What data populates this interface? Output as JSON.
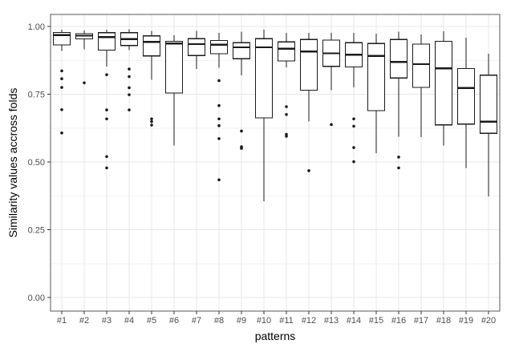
{
  "axes": {
    "x_title": "patterns",
    "y_title": "Similarity values accross folds"
  },
  "colors": {
    "background": "#ffffff",
    "panel_background": "#ffffff",
    "panel_border": "#595959",
    "grid_major": "#e7e7e7",
    "grid_minor": "#f2f2f2",
    "tick_mark": "#333333",
    "tick_label": "#4d4d4d",
    "axis_title": "#000000",
    "box_stroke": "#1a1a1a",
    "box_fill": "#ffffff",
    "median_stroke": "#1a1a1a",
    "outlier_fill": "#1a1a1a"
  },
  "chart_data": {
    "type": "boxplot",
    "title": "",
    "xlabel": "patterns",
    "ylabel": "Similarity values accross folds",
    "ylim": [
      0,
      1
    ],
    "grid": "on",
    "legend": "none",
    "y_ticks": [
      {
        "value": 0.0,
        "label": "0.00"
      },
      {
        "value": 0.25,
        "label": "0.25"
      },
      {
        "value": 0.5,
        "label": "0.50"
      },
      {
        "value": 0.75,
        "label": "0.75"
      },
      {
        "value": 1.0,
        "label": "1.00"
      }
    ],
    "y_minor_gridlines": [
      0.125,
      0.375,
      0.625,
      0.875
    ],
    "categories": [
      "#1",
      "#2",
      "#3",
      "#4",
      "#5",
      "#6",
      "#7",
      "#8",
      "#9",
      "#10",
      "#11",
      "#12",
      "#13",
      "#14",
      "#15",
      "#16",
      "#17",
      "#18",
      "#19",
      "#20"
    ],
    "boxes": [
      {
        "label": "#1",
        "whisker_low": 0.91,
        "q1": 0.932,
        "median": 0.968,
        "q3": 0.978,
        "whisker_high": 0.988,
        "outliers": [
          0.836,
          0.807,
          0.775,
          0.693,
          0.607
        ]
      },
      {
        "label": "#2",
        "whisker_low": 0.915,
        "q1": 0.954,
        "median": 0.966,
        "q3": 0.973,
        "whisker_high": 0.985,
        "outliers": [
          0.792
        ]
      },
      {
        "label": "#3",
        "whisker_low": 0.852,
        "q1": 0.913,
        "median": 0.961,
        "q3": 0.977,
        "whisker_high": 0.988,
        "outliers": [
          0.822,
          0.692,
          0.659,
          0.52,
          0.478
        ]
      },
      {
        "label": "#4",
        "whisker_low": 0.912,
        "q1": 0.93,
        "median": 0.953,
        "q3": 0.977,
        "whisker_high": 0.989,
        "outliers": [
          0.843,
          0.815,
          0.774,
          0.748,
          0.692
        ]
      },
      {
        "label": "#5",
        "whisker_low": 0.803,
        "q1": 0.891,
        "median": 0.943,
        "q3": 0.965,
        "whisker_high": 0.983,
        "outliers": [
          0.659,
          0.649,
          0.636
        ]
      },
      {
        "label": "#6",
        "whisker_low": 0.561,
        "q1": 0.754,
        "median": 0.937,
        "q3": 0.945,
        "whisker_high": 0.967,
        "outliers": []
      },
      {
        "label": "#7",
        "whisker_low": 0.843,
        "q1": 0.893,
        "median": 0.935,
        "q3": 0.955,
        "whisker_high": 0.984,
        "outliers": []
      },
      {
        "label": "#8",
        "whisker_low": 0.848,
        "q1": 0.899,
        "median": 0.933,
        "q3": 0.948,
        "whisker_high": 0.977,
        "outliers": [
          0.8,
          0.708,
          0.659,
          0.634,
          0.586,
          0.434
        ]
      },
      {
        "label": "#9",
        "whisker_low": 0.82,
        "q1": 0.881,
        "median": 0.923,
        "q3": 0.94,
        "whisker_high": 0.981,
        "outliers": [
          0.614,
          0.556,
          0.55
        ]
      },
      {
        "label": "#10",
        "whisker_low": 0.355,
        "q1": 0.663,
        "median": 0.923,
        "q3": 0.955,
        "whisker_high": 0.988,
        "outliers": []
      },
      {
        "label": "#11",
        "whisker_low": 0.849,
        "q1": 0.873,
        "median": 0.918,
        "q3": 0.943,
        "whisker_high": 0.977,
        "outliers": [
          0.704,
          0.675,
          0.602,
          0.595
        ]
      },
      {
        "label": "#12",
        "whisker_low": 0.65,
        "q1": 0.765,
        "median": 0.908,
        "q3": 0.952,
        "whisker_high": 0.977,
        "outliers": [
          0.468
        ]
      },
      {
        "label": "#13",
        "whisker_low": 0.765,
        "q1": 0.853,
        "median": 0.901,
        "q3": 0.95,
        "whisker_high": 0.977,
        "outliers": [
          0.638
        ]
      },
      {
        "label": "#14",
        "whisker_low": 0.775,
        "q1": 0.851,
        "median": 0.896,
        "q3": 0.94,
        "whisker_high": 0.977,
        "outliers": [
          0.659,
          0.632,
          0.553,
          0.501
        ]
      },
      {
        "label": "#15",
        "whisker_low": 0.532,
        "q1": 0.689,
        "median": 0.891,
        "q3": 0.937,
        "whisker_high": 0.974,
        "outliers": []
      },
      {
        "label": "#16",
        "whisker_low": 0.593,
        "q1": 0.81,
        "median": 0.869,
        "q3": 0.952,
        "whisker_high": 0.981,
        "outliers": [
          0.518,
          0.478
        ]
      },
      {
        "label": "#17",
        "whisker_low": 0.591,
        "q1": 0.775,
        "median": 0.861,
        "q3": 0.935,
        "whisker_high": 0.97,
        "outliers": []
      },
      {
        "label": "#18",
        "whisker_low": 0.56,
        "q1": 0.637,
        "median": 0.845,
        "q3": 0.945,
        "whisker_high": 0.982,
        "outliers": []
      },
      {
        "label": "#19",
        "whisker_low": 0.478,
        "q1": 0.64,
        "median": 0.773,
        "q3": 0.845,
        "whisker_high": 0.958,
        "outliers": []
      },
      {
        "label": "#20",
        "whisker_low": 0.373,
        "q1": 0.606,
        "median": 0.649,
        "q3": 0.82,
        "whisker_high": 0.9,
        "outliers": []
      }
    ]
  }
}
